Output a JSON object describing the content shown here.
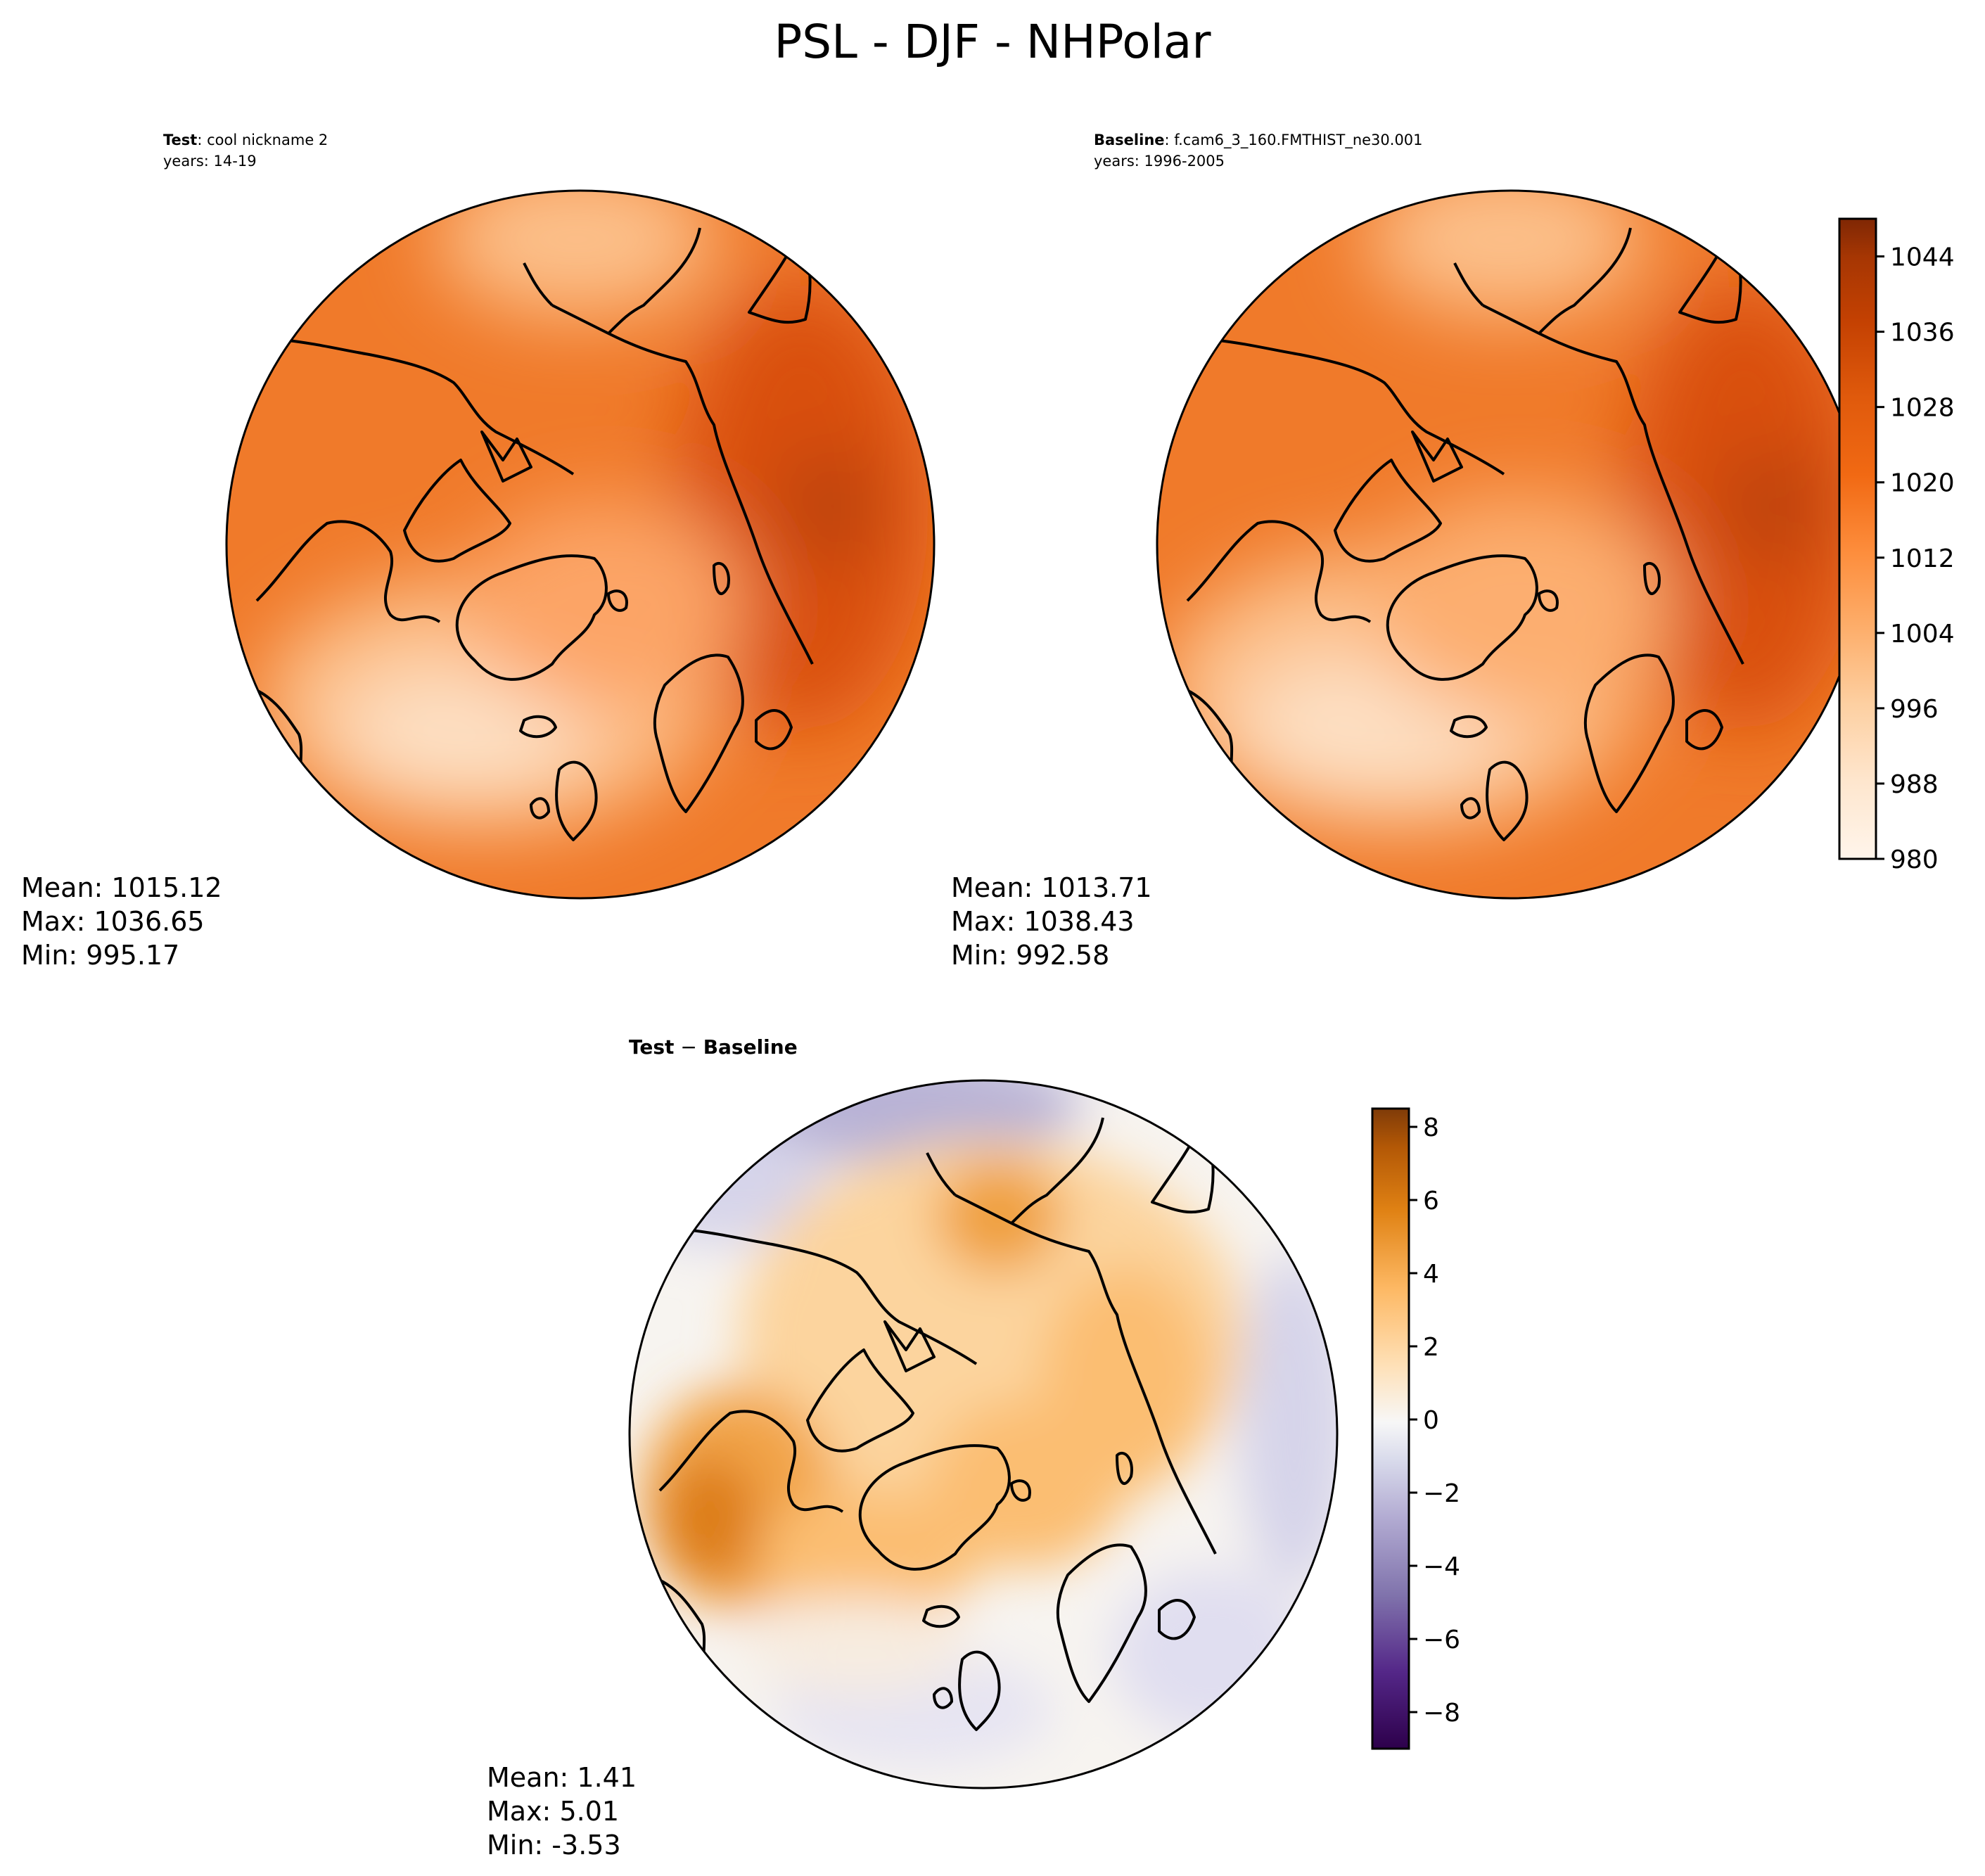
{
  "figure_title": "PSL - DJF - NHPolar",
  "chart_data": [
    {
      "type": "heatmap",
      "projection": "north polar stereographic",
      "panel": "test",
      "label_bold": "Test",
      "label_rest": ": cool nickname 2",
      "years": "years: 14-19",
      "stats": {
        "mean": "Mean: 1015.12",
        "max": "Max: 1036.65",
        "min": "Min: 995.17"
      },
      "colormap": "Oranges",
      "color_range": [
        980,
        1048
      ]
    },
    {
      "type": "heatmap",
      "projection": "north polar stereographic",
      "panel": "baseline",
      "label_bold": "Baseline",
      "label_rest": ": f.cam6_3_160.FMTHIST_ne30.001",
      "years": "years: 1996-2005",
      "stats": {
        "mean": "Mean: 1013.71",
        "max": "Max: 1038.43",
        "min": "Min: 992.58"
      },
      "colormap": "Oranges",
      "color_range": [
        980,
        1048
      ],
      "colorbar": {
        "ticks": [
          980,
          988,
          996,
          1004,
          1012,
          1020,
          1028,
          1036,
          1044
        ],
        "tick_labels": [
          "980",
          "988",
          "996",
          "1004",
          "1012",
          "1020",
          "1028",
          "1036",
          "1044"
        ],
        "colors": [
          "#fff5eb",
          "#fee9d4",
          "#fdd9b4",
          "#fdc088",
          "#fda25f",
          "#f98a3d",
          "#f07122",
          "#e15a0d",
          "#c84b03",
          "#a43903",
          "#7f2704"
        ]
      }
    },
    {
      "type": "heatmap",
      "projection": "north polar stereographic",
      "panel": "difference",
      "title_bold": "Test",
      "title_sep": " − ",
      "title_bold2": "Baseline",
      "stats": {
        "mean": "Mean:  1.41",
        "max": "Max:  5.01",
        "min": "Min: -3.53"
      },
      "colormap": "PuOr_r",
      "color_range": [
        -9,
        8.5
      ],
      "colorbar": {
        "ticks": [
          -8,
          -6,
          -4,
          -2,
          0,
          2,
          4,
          6,
          8
        ],
        "tick_labels": [
          "−8",
          "−6",
          "−4",
          "−2",
          "0",
          "2",
          "4",
          "6",
          "8"
        ],
        "colors": [
          "#2d004b",
          "#542788",
          "#8073ac",
          "#b2abd2",
          "#d8daeb",
          "#f7f7f7",
          "#fee0b6",
          "#fdb863",
          "#e08214",
          "#b35806",
          "#7f3b08"
        ]
      }
    }
  ],
  "colors": {
    "coastline": "#000000",
    "frame": "#000000"
  }
}
